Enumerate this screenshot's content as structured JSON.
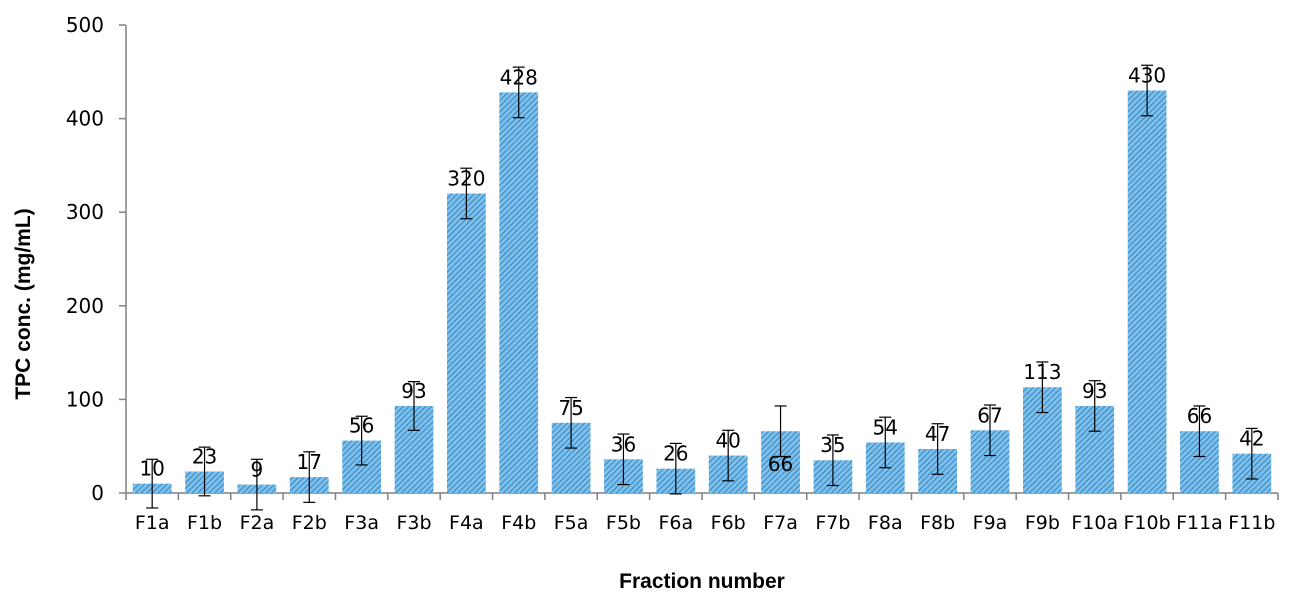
{
  "chart_data": {
    "type": "bar",
    "title": "",
    "xlabel": "Fraction number",
    "ylabel": "TPC conc. (mg/mL)",
    "ylim": [
      0,
      500
    ],
    "yticks": [
      "0",
      "100",
      "200",
      "300",
      "400",
      "500"
    ],
    "grid": false,
    "legend": "none",
    "bar_fill": "#7fbfe8",
    "bar_hatch": "#2f86c8",
    "categories": [
      "F1a",
      "F1b",
      "F2a",
      "F2b",
      "F3a",
      "F3b",
      "F4a",
      "F4b",
      "F5a",
      "F5b",
      "F6a",
      "F6b",
      "F7a",
      "F7b",
      "F8a",
      "F8b",
      "F9a",
      "F9b",
      "F10a",
      "F10b",
      "F11a",
      "F11b"
    ],
    "values": [
      10,
      23,
      9,
      17,
      56,
      93,
      320,
      428,
      75,
      36,
      26,
      40,
      66,
      35,
      54,
      47,
      67,
      113,
      93,
      430,
      66,
      42
    ],
    "data_labels": [
      "10",
      "23",
      "9",
      "17",
      "56",
      "93",
      "320",
      "428",
      "75",
      "36",
      "26",
      "40",
      "66",
      "35",
      "54",
      "47",
      "67",
      "113",
      "93",
      "430",
      "66",
      "42"
    ],
    "error": [
      26,
      26,
      27,
      27,
      26,
      26,
      27,
      27,
      27,
      27,
      27,
      27,
      27,
      27,
      27,
      27,
      27,
      27,
      27,
      27,
      27,
      27
    ]
  }
}
